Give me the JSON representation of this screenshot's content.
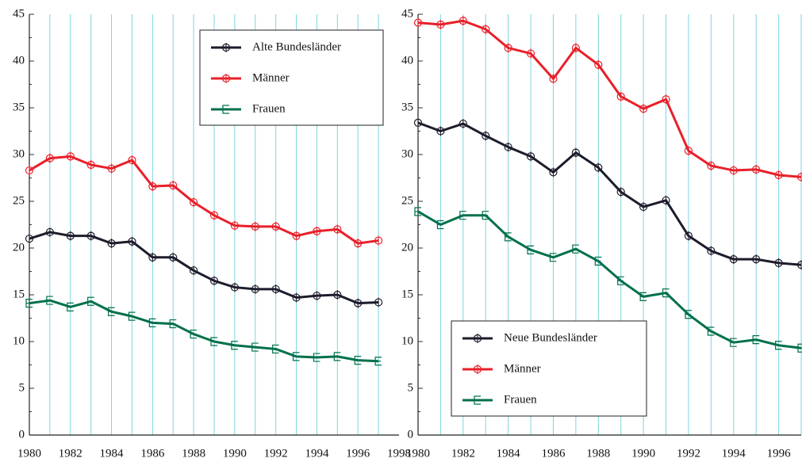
{
  "chart_data": [
    {
      "type": "line",
      "x": [
        1980,
        1981,
        1982,
        1983,
        1984,
        1985,
        1986,
        1987,
        1988,
        1989,
        1990,
        1991,
        1992,
        1993,
        1994,
        1995,
        1996,
        1997
      ],
      "series": [
        {
          "name": "Alte Bundesländer",
          "color": "#1c1c2c",
          "marker": "circle",
          "values": [
            21.0,
            21.7,
            21.3,
            21.3,
            20.5,
            20.7,
            19.0,
            19.0,
            17.6,
            16.5,
            15.8,
            15.6,
            15.6,
            14.7,
            14.9,
            15.0,
            14.1,
            14.2
          ]
        },
        {
          "name": "Männer",
          "color": "#e8202a",
          "marker": "circle",
          "values": [
            28.3,
            29.6,
            29.8,
            28.9,
            28.5,
            29.4,
            26.6,
            26.7,
            24.9,
            23.5,
            22.4,
            22.3,
            22.3,
            21.3,
            21.8,
            22.0,
            20.5,
            20.8
          ]
        },
        {
          "name": "Frauen",
          "color": "#00704a",
          "marker": "bracket",
          "values": [
            14.1,
            14.4,
            13.7,
            14.3,
            13.2,
            12.7,
            12.0,
            11.9,
            10.8,
            10.0,
            9.6,
            9.4,
            9.2,
            8.4,
            8.3,
            8.4,
            8.0,
            7.9
          ]
        }
      ],
      "xlim": [
        1980,
        1998
      ],
      "xticks": [
        1980,
        1982,
        1984,
        1986,
        1988,
        1990,
        1992,
        1994,
        1996,
        1998
      ],
      "ylim": [
        0,
        45
      ],
      "yticks": [
        0,
        5,
        10,
        15,
        20,
        25,
        30,
        35,
        40,
        45
      ],
      "legend": "upper right"
    },
    {
      "type": "line",
      "x": [
        1980,
        1981,
        1982,
        1983,
        1984,
        1985,
        1986,
        1987,
        1988,
        1989,
        1990,
        1991,
        1992,
        1993,
        1994,
        1995,
        1996,
        1997
      ],
      "series": [
        {
          "name": "Neue Bundesländer",
          "color": "#1c1c2c",
          "marker": "circle",
          "values": [
            33.4,
            32.5,
            33.3,
            32.0,
            30.8,
            29.8,
            28.1,
            30.2,
            28.6,
            26.0,
            24.4,
            25.1,
            21.3,
            19.7,
            18.8,
            18.8,
            18.4,
            18.2
          ]
        },
        {
          "name": "Männer",
          "color": "#e8202a",
          "marker": "circle",
          "values": [
            44.1,
            43.9,
            44.3,
            43.4,
            41.4,
            40.8,
            38.1,
            41.4,
            39.6,
            36.2,
            34.9,
            35.9,
            30.4,
            28.8,
            28.3,
            28.4,
            27.8,
            27.6
          ]
        },
        {
          "name": "Frauen",
          "color": "#00704a",
          "marker": "bracket",
          "values": [
            23.9,
            22.5,
            23.5,
            23.5,
            21.2,
            19.8,
            19.0,
            19.9,
            18.6,
            16.5,
            14.8,
            15.2,
            12.9,
            11.1,
            9.9,
            10.2,
            9.6,
            9.3
          ]
        }
      ],
      "xlim": [
        1980,
        1997
      ],
      "xticks": [
        1980,
        1982,
        1984,
        1986,
        1988,
        1990,
        1992,
        1994,
        1996
      ],
      "ylim": [
        0,
        45
      ],
      "yticks": [
        0,
        5,
        10,
        15,
        20,
        25,
        30,
        35,
        40,
        45
      ],
      "legend": "lower left"
    }
  ]
}
